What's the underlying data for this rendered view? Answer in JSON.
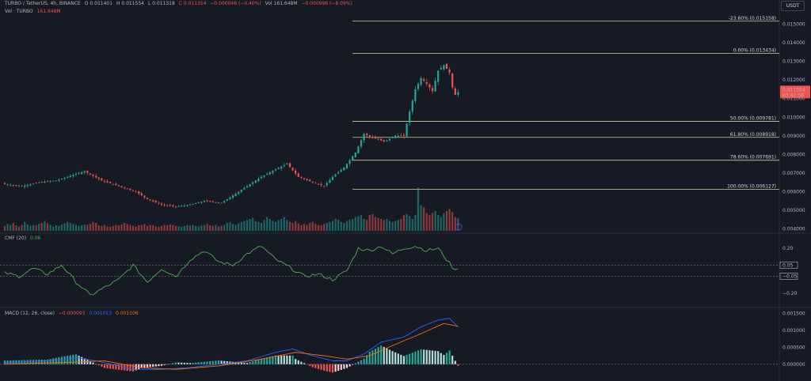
{
  "header": {
    "symbol": "TURBO / TetherUS, 4h, BINANCE",
    "open": "O 0.011401",
    "high": "H 0.011554",
    "low": "L 0.011318",
    "close": "C 0.011354",
    "change": "−0.000046 (−0.40%)",
    "vol_short": "Vol 161.648M",
    "vol_change": "−0.000998 (−8.09%)",
    "vol_label": "Vol · TURBO",
    "vol_value": "161.648M"
  },
  "currency_button": "USDT",
  "colors": {
    "up": "#26a69a",
    "down": "#ef5350",
    "fib": "#d3d08a",
    "cmf": "#4caf50",
    "macd": "#2962ff",
    "signal": "#ff6d00",
    "last_price_tag": "#ef5350"
  },
  "chart_data": [
    {
      "type": "candlestick",
      "name": "price",
      "scale": "linear",
      "ylim": [
        0.0039,
        0.0157
      ],
      "y_ticks": [
        "0.015000",
        "0.014000",
        "0.013000",
        "0.012000",
        "0.011000",
        "0.010000",
        "0.009000",
        "0.008000",
        "0.007000",
        "0.006000",
        "0.005000",
        "0.004000"
      ],
      "last_price": "0.011354",
      "countdown": "03:42:58",
      "fib_levels": [
        {
          "label": "-23.60% (0.015158)",
          "price": 0.015158
        },
        {
          "label": "0.00% (0.013434)",
          "price": 0.013434
        },
        {
          "label": "50.00% (0.009781)",
          "price": 0.009781
        },
        {
          "label": "61.80% (0.008918)",
          "price": 0.008918
        },
        {
          "label": "78.60% (0.007691)",
          "price": 0.007691
        },
        {
          "label": "100.00% (0.006127)",
          "price": 0.006127
        }
      ],
      "close_anchors": [
        [
          0,
          0.0064
        ],
        [
          6,
          0.0063
        ],
        [
          12,
          0.0065
        ],
        [
          18,
          0.0066
        ],
        [
          24,
          0.0069
        ],
        [
          28,
          0.0071
        ],
        [
          34,
          0.0066
        ],
        [
          40,
          0.0063
        ],
        [
          46,
          0.006
        ],
        [
          50,
          0.0056
        ],
        [
          55,
          0.0053
        ],
        [
          60,
          0.0052
        ],
        [
          65,
          0.0053
        ],
        [
          70,
          0.0055
        ],
        [
          76,
          0.0054
        ],
        [
          80,
          0.0058
        ],
        [
          85,
          0.0063
        ],
        [
          90,
          0.0068
        ],
        [
          95,
          0.0072
        ],
        [
          99,
          0.0075
        ],
        [
          103,
          0.0068
        ],
        [
          108,
          0.0065
        ],
        [
          112,
          0.0063
        ],
        [
          115,
          0.0068
        ],
        [
          119,
          0.0073
        ],
        [
          123,
          0.0081
        ],
        [
          126,
          0.0091
        ],
        [
          129,
          0.0089
        ],
        [
          133,
          0.0087
        ],
        [
          137,
          0.009
        ],
        [
          140,
          0.009
        ],
        [
          142,
          0.0103
        ],
        [
          144,
          0.0115
        ],
        [
          146,
          0.0121
        ],
        [
          148,
          0.0118
        ],
        [
          150,
          0.0114
        ],
        [
          152,
          0.0125
        ],
        [
          154,
          0.0128
        ],
        [
          156,
          0.0124
        ],
        [
          157,
          0.0116
        ],
        [
          158,
          0.0112
        ],
        [
          159,
          0.01135
        ]
      ]
    },
    {
      "type": "bar",
      "name": "volume",
      "values_millions": [
        25,
        35,
        30,
        40,
        28,
        22,
        30,
        45,
        32,
        25,
        30,
        28,
        35,
        40,
        50,
        38,
        30,
        22,
        28,
        25,
        32,
        38,
        45,
        40,
        35,
        30,
        25,
        28,
        32,
        30,
        35,
        45,
        40,
        28,
        25,
        30,
        22,
        20,
        25,
        30,
        28,
        32,
        40,
        35,
        30,
        25,
        22,
        28,
        30,
        35,
        25,
        30,
        28,
        22,
        20,
        25,
        30,
        28,
        32,
        30,
        25,
        22,
        20,
        24,
        28,
        26,
        30,
        25,
        22,
        26,
        30,
        35,
        28,
        25,
        30,
        22,
        26,
        30,
        40,
        45,
        35,
        30,
        38,
        45,
        50,
        55,
        60,
        65,
        50,
        45,
        40,
        55,
        70,
        60,
        50,
        45,
        55,
        60,
        70,
        55,
        45,
        40,
        50,
        38,
        30,
        35,
        30,
        40,
        45,
        35,
        30,
        28,
        35,
        40,
        45,
        50,
        60,
        55,
        45,
        40,
        50,
        55,
        60,
        70,
        75,
        80,
        60,
        55,
        80,
        85,
        70,
        65,
        60,
        55,
        60,
        50,
        45,
        50,
        55,
        60,
        80,
        85,
        75,
        60,
        80,
        220,
        130,
        120,
        90,
        80,
        90,
        100,
        80,
        70,
        90,
        100,
        110,
        95,
        70,
        65
      ],
      "ylim_millions": [
        0,
        240
      ]
    },
    {
      "type": "line",
      "name": "CMF (20)",
      "last_value": "0.06",
      "y_ticks": [
        "0.20",
        "−0.20"
      ],
      "ylim": [
        -0.3,
        0.3
      ],
      "zero_line": 0,
      "markers": [
        "0.05",
        "−0.05"
      ],
      "anchors": [
        [
          0,
          -0.02
        ],
        [
          5,
          -0.05
        ],
        [
          10,
          0.02
        ],
        [
          15,
          -0.03
        ],
        [
          20,
          0.05
        ],
        [
          25,
          -0.1
        ],
        [
          30,
          -0.22
        ],
        [
          35,
          -0.15
        ],
        [
          40,
          -0.08
        ],
        [
          45,
          0.05
        ],
        [
          50,
          -0.1
        ],
        [
          55,
          0.02
        ],
        [
          60,
          -0.05
        ],
        [
          65,
          0.1
        ],
        [
          70,
          0.18
        ],
        [
          75,
          0.08
        ],
        [
          80,
          0.05
        ],
        [
          85,
          0.15
        ],
        [
          90,
          0.22
        ],
        [
          95,
          0.1
        ],
        [
          100,
          0.03
        ],
        [
          105,
          -0.05
        ],
        [
          110,
          -0.03
        ],
        [
          115,
          -0.08
        ],
        [
          120,
          0.0
        ],
        [
          124,
          0.2
        ],
        [
          128,
          0.18
        ],
        [
          132,
          0.22
        ],
        [
          136,
          0.15
        ],
        [
          140,
          0.2
        ],
        [
          144,
          0.22
        ],
        [
          148,
          0.18
        ],
        [
          152,
          0.2
        ],
        [
          155,
          0.1
        ],
        [
          158,
          0.0
        ],
        [
          160,
          0.06
        ]
      ]
    },
    {
      "type": "line+histogram",
      "name": "MACD (12, 26, close)",
      "values_shown": [
        "−0.000093",
        "0.001013",
        "0.001106"
      ],
      "y_ticks": [
        "0.001500",
        "0.001000",
        "0.000500",
        "0.000000"
      ],
      "ylim": [
        -0.0004,
        0.0016
      ],
      "macd_anchors": [
        [
          0,
          5e-05
        ],
        [
          15,
          0.0001
        ],
        [
          25,
          0.0002
        ],
        [
          35,
          5e-05
        ],
        [
          45,
          -0.00015
        ],
        [
          55,
          -0.00015
        ],
        [
          65,
          -0.0001
        ],
        [
          75,
          0.0
        ],
        [
          85,
          0.0001
        ],
        [
          95,
          0.00035
        ],
        [
          101,
          0.00045
        ],
        [
          108,
          0.00025
        ],
        [
          115,
          0.0001
        ],
        [
          120,
          0.0001
        ],
        [
          126,
          0.0003
        ],
        [
          132,
          0.00065
        ],
        [
          140,
          0.0008
        ],
        [
          146,
          0.0011
        ],
        [
          152,
          0.0013
        ],
        [
          156,
          0.00135
        ],
        [
          160,
          0.00101
        ]
      ],
      "signal_anchors": [
        [
          0,
          0.0
        ],
        [
          20,
          5e-05
        ],
        [
          35,
          0.0001
        ],
        [
          48,
          -0.0001
        ],
        [
          60,
          -0.00015
        ],
        [
          75,
          -5e-05
        ],
        [
          90,
          0.00015
        ],
        [
          102,
          0.00035
        ],
        [
          112,
          0.00025
        ],
        [
          120,
          0.00015
        ],
        [
          128,
          0.00025
        ],
        [
          136,
          0.00055
        ],
        [
          146,
          0.0009
        ],
        [
          154,
          0.0012
        ],
        [
          160,
          0.0011
        ]
      ]
    }
  ]
}
